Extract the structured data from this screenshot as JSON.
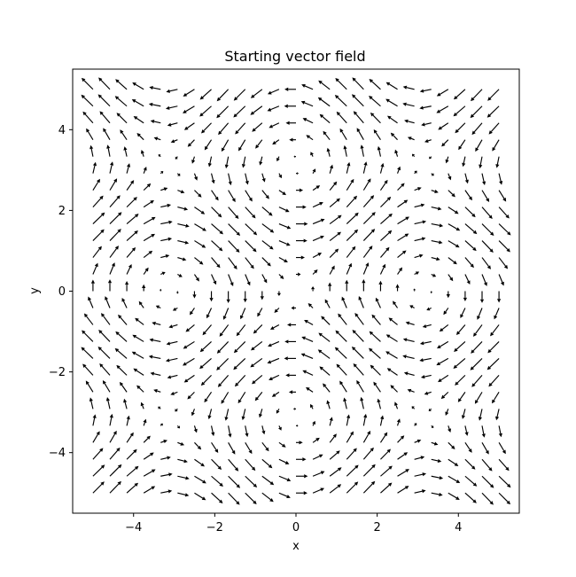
{
  "chart_data": {
    "type": "quiver",
    "title": "Starting vector field",
    "xlabel": "x",
    "ylabel": "y",
    "xlim": [
      -5.5,
      5.5
    ],
    "ylim": [
      -5.5,
      5.5
    ],
    "xticks": [
      -4,
      -2,
      0,
      2,
      4
    ],
    "yticks": [
      -4,
      -2,
      0,
      2,
      4
    ],
    "xtick_labels": [
      "−4",
      "−2",
      "0",
      "2",
      "4"
    ],
    "ytick_labels": [
      "−4",
      "−2",
      "0",
      "2",
      "4"
    ],
    "grid": false,
    "legend": false,
    "field": {
      "x_range": [
        -5,
        5
      ],
      "y_range": [
        -5,
        5
      ],
      "n": 25,
      "u": "sin(y)",
      "v": "sin(x)"
    }
  }
}
